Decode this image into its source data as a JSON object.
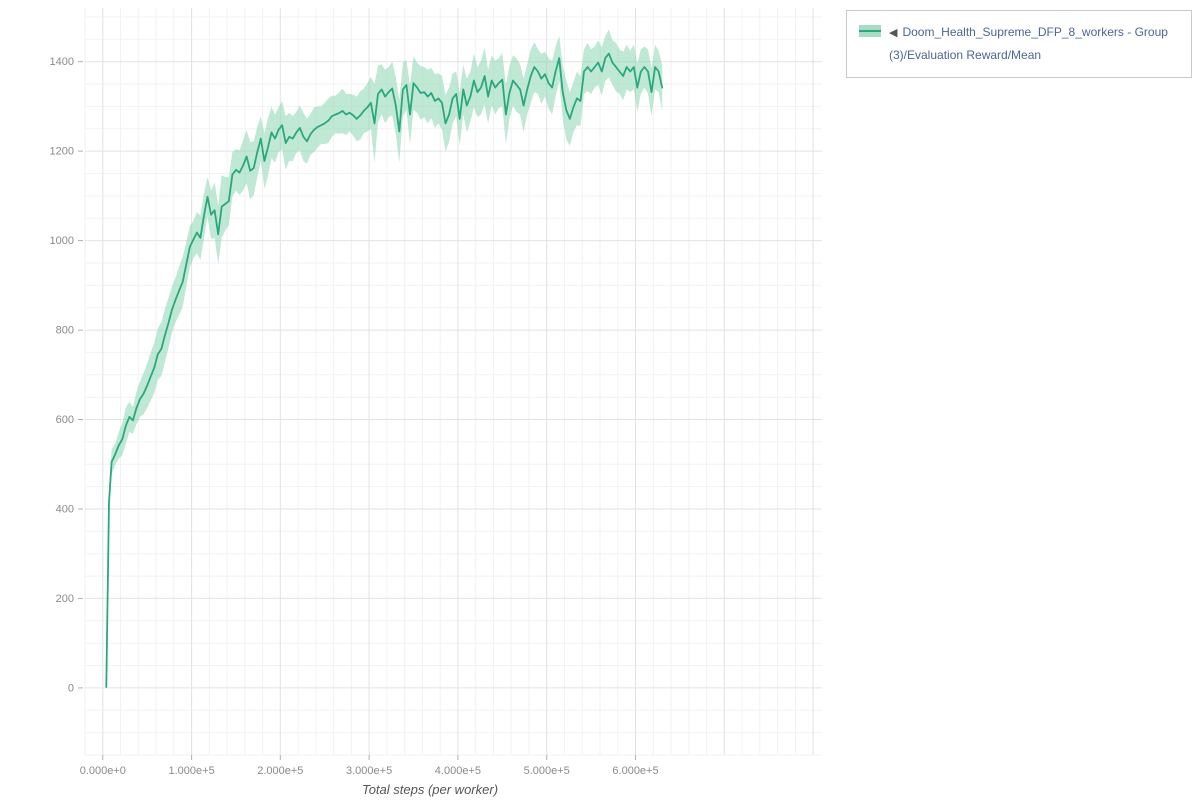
{
  "legend": {
    "marker": "◀",
    "label": "Doom_Health_Supreme_DFP_8_workers - Group(3)/Evaluation Reward/Mean"
  },
  "colors": {
    "line": "#2aa77e",
    "band": "#a7dcc3",
    "band_fill": "#82d3ac",
    "legend_text": "#4a6698",
    "legend_border": "#c9c9c9",
    "axis_title": "#555555",
    "tick_text": "#8a8a8a",
    "tick_mark": "#b0b0b0",
    "grid_major": "#e2e2e2",
    "grid_minor": "#f2f2f2"
  },
  "chart_data": {
    "type": "line",
    "title": "",
    "xlabel": "Total steps (per worker)",
    "ylabel": "",
    "legend_position": "top-right",
    "grid": true,
    "xlim": [
      -20000,
      810000
    ],
    "ylim": [
      -150,
      1520
    ],
    "x_major": 100000,
    "x_minor": 20000,
    "y_minor": 50,
    "x_ticks": [
      0,
      100000,
      200000,
      300000,
      400000,
      500000,
      600000
    ],
    "x_tick_labels": [
      "0.000e+0",
      "1.000e+5",
      "2.000e+5",
      "3.000e+5",
      "4.000e+5",
      "5.000e+5",
      "6.000e+5"
    ],
    "y_ticks": [
      0,
      200,
      400,
      600,
      800,
      1000,
      1200,
      1400
    ],
    "series": [
      {
        "name": "Doom_Health_Supreme_DFP_8_workers - Group(3)/Evaluation Reward/Mean",
        "point_format": [
          "step",
          "mean",
          "spread"
        ],
        "points": [
          [
            4000,
            2,
            2
          ],
          [
            7000,
            415,
            25
          ],
          [
            10000,
            505,
            28
          ],
          [
            14000,
            522,
            24
          ],
          [
            18000,
            542,
            30
          ],
          [
            22000,
            556,
            36
          ],
          [
            26000,
            586,
            40
          ],
          [
            30000,
            606,
            34
          ],
          [
            34000,
            598,
            30
          ],
          [
            38000,
            626,
            36
          ],
          [
            42000,
            646,
            40
          ],
          [
            46000,
            658,
            46
          ],
          [
            50000,
            676,
            50
          ],
          [
            54000,
            696,
            54
          ],
          [
            58000,
            716,
            56
          ],
          [
            62000,
            746,
            58
          ],
          [
            66000,
            758,
            60
          ],
          [
            70000,
            788,
            60
          ],
          [
            74000,
            816,
            56
          ],
          [
            78000,
            846,
            52
          ],
          [
            82000,
            868,
            50
          ],
          [
            86000,
            888,
            54
          ],
          [
            90000,
            908,
            56
          ],
          [
            94000,
            946,
            50
          ],
          [
            98000,
            986,
            46
          ],
          [
            102000,
            1002,
            42
          ],
          [
            106000,
            1018,
            46
          ],
          [
            110000,
            1006,
            50
          ],
          [
            114000,
            1056,
            50
          ],
          [
            118000,
            1098,
            44
          ],
          [
            122000,
            1058,
            54
          ],
          [
            126000,
            1068,
            62
          ],
          [
            130000,
            1014,
            66
          ],
          [
            134000,
            1076,
            70
          ],
          [
            138000,
            1082,
            60
          ],
          [
            142000,
            1088,
            54
          ],
          [
            146000,
            1148,
            50
          ],
          [
            150000,
            1158,
            46
          ],
          [
            154000,
            1152,
            50
          ],
          [
            158000,
            1168,
            56
          ],
          [
            162000,
            1188,
            60
          ],
          [
            166000,
            1156,
            64
          ],
          [
            170000,
            1162,
            60
          ],
          [
            174000,
            1198,
            56
          ],
          [
            178000,
            1228,
            50
          ],
          [
            182000,
            1178,
            62
          ],
          [
            186000,
            1208,
            64
          ],
          [
            190000,
            1242,
            58
          ],
          [
            194000,
            1228,
            54
          ],
          [
            198000,
            1248,
            50
          ],
          [
            202000,
            1258,
            54
          ],
          [
            206000,
            1218,
            60
          ],
          [
            210000,
            1232,
            54
          ],
          [
            214000,
            1228,
            50
          ],
          [
            218000,
            1242,
            46
          ],
          [
            222000,
            1252,
            50
          ],
          [
            226000,
            1232,
            54
          ],
          [
            230000,
            1222,
            50
          ],
          [
            234000,
            1238,
            46
          ],
          [
            238000,
            1248,
            50
          ],
          [
            242000,
            1254,
            46
          ],
          [
            246000,
            1258,
            42
          ],
          [
            250000,
            1262,
            46
          ],
          [
            254000,
            1268,
            50
          ],
          [
            258000,
            1278,
            46
          ],
          [
            262000,
            1282,
            42
          ],
          [
            266000,
            1285,
            46
          ],
          [
            270000,
            1290,
            50
          ],
          [
            274000,
            1282,
            46
          ],
          [
            278000,
            1286,
            42
          ],
          [
            282000,
            1280,
            46
          ],
          [
            286000,
            1272,
            50
          ],
          [
            290000,
            1280,
            54
          ],
          [
            294000,
            1290,
            50
          ],
          [
            298000,
            1298,
            54
          ],
          [
            302000,
            1308,
            58
          ],
          [
            306000,
            1262,
            88
          ],
          [
            310000,
            1328,
            64
          ],
          [
            314000,
            1338,
            56
          ],
          [
            318000,
            1322,
            60
          ],
          [
            322000,
            1332,
            56
          ],
          [
            326000,
            1340,
            60
          ],
          [
            330000,
            1302,
            64
          ],
          [
            334000,
            1244,
            70
          ],
          [
            338000,
            1338,
            60
          ],
          [
            342000,
            1348,
            56
          ],
          [
            346000,
            1282,
            66
          ],
          [
            350000,
            1352,
            60
          ],
          [
            354000,
            1342,
            56
          ],
          [
            358000,
            1330,
            60
          ],
          [
            362000,
            1332,
            56
          ],
          [
            366000,
            1322,
            60
          ],
          [
            370000,
            1330,
            56
          ],
          [
            374000,
            1312,
            60
          ],
          [
            378000,
            1318,
            56
          ],
          [
            382000,
            1308,
            60
          ],
          [
            386000,
            1262,
            64
          ],
          [
            390000,
            1282,
            60
          ],
          [
            394000,
            1318,
            56
          ],
          [
            398000,
            1328,
            50
          ],
          [
            402000,
            1272,
            60
          ],
          [
            406000,
            1338,
            56
          ],
          [
            410000,
            1302,
            60
          ],
          [
            414000,
            1322,
            56
          ],
          [
            418000,
            1358,
            60
          ],
          [
            422000,
            1332,
            56
          ],
          [
            426000,
            1342,
            60
          ],
          [
            430000,
            1368,
            64
          ],
          [
            434000,
            1322,
            60
          ],
          [
            438000,
            1358,
            56
          ],
          [
            442000,
            1342,
            60
          ],
          [
            446000,
            1352,
            56
          ],
          [
            450000,
            1360,
            60
          ],
          [
            454000,
            1282,
            66
          ],
          [
            458000,
            1330,
            60
          ],
          [
            462000,
            1358,
            56
          ],
          [
            466000,
            1348,
            60
          ],
          [
            470000,
            1338,
            56
          ],
          [
            474000,
            1302,
            60
          ],
          [
            478000,
            1338,
            56
          ],
          [
            482000,
            1368,
            60
          ],
          [
            486000,
            1388,
            56
          ],
          [
            490000,
            1378,
            50
          ],
          [
            494000,
            1362,
            56
          ],
          [
            498000,
            1372,
            50
          ],
          [
            502000,
            1352,
            56
          ],
          [
            506000,
            1342,
            60
          ],
          [
            510000,
            1378,
            56
          ],
          [
            514000,
            1408,
            50
          ],
          [
            518000,
            1332,
            60
          ],
          [
            522000,
            1292,
            66
          ],
          [
            526000,
            1272,
            60
          ],
          [
            530000,
            1298,
            56
          ],
          [
            534000,
            1318,
            60
          ],
          [
            538000,
            1312,
            56
          ],
          [
            542000,
            1378,
            50
          ],
          [
            546000,
            1388,
            54
          ],
          [
            550000,
            1378,
            50
          ],
          [
            554000,
            1388,
            46
          ],
          [
            558000,
            1398,
            50
          ],
          [
            562000,
            1378,
            54
          ],
          [
            566000,
            1408,
            50
          ],
          [
            570000,
            1418,
            54
          ],
          [
            574000,
            1398,
            50
          ],
          [
            578000,
            1388,
            54
          ],
          [
            582000,
            1378,
            50
          ],
          [
            586000,
            1368,
            54
          ],
          [
            590000,
            1388,
            50
          ],
          [
            594000,
            1378,
            46
          ],
          [
            598000,
            1388,
            50
          ],
          [
            602000,
            1342,
            54
          ],
          [
            606000,
            1378,
            50
          ],
          [
            610000,
            1388,
            46
          ],
          [
            614000,
            1378,
            50
          ],
          [
            618000,
            1332,
            54
          ],
          [
            622000,
            1388,
            50
          ],
          [
            626000,
            1378,
            46
          ],
          [
            630000,
            1342,
            50
          ]
        ]
      }
    ]
  }
}
